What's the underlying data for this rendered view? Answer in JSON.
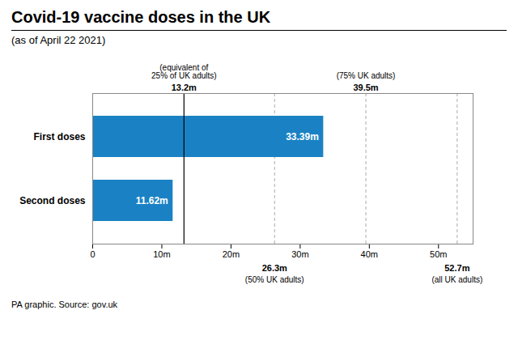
{
  "chart_data": {
    "type": "bar",
    "orientation": "horizontal",
    "title": "Covid-19 vaccine doses in the UK",
    "subtitle": "(as of April 22 2021)",
    "caption": "PA graphic. Source: gov.uk",
    "categories": [
      "First doses",
      "Second doses"
    ],
    "values": [
      33.39,
      11.62
    ],
    "value_labels": [
      "33.39m",
      "11.62m"
    ],
    "data_labels": true,
    "color": "#1a82c4",
    "xlim": [
      0,
      55
    ],
    "xticks": [
      0,
      {
        "value": 10,
        "label": "10m"
      },
      {
        "value": 20,
        "label": "20m"
      },
      {
        "value": 30,
        "label": "30m"
      },
      {
        "value": 40,
        "label": "40m"
      },
      {
        "value": 50,
        "label": "50m"
      }
    ],
    "annotations": [
      {
        "x": 13.2,
        "label": "13.2m",
        "text": "(equivalent of\n25% of UK adults)",
        "line_style": "solid",
        "color": "#000000"
      },
      {
        "x": 26.3,
        "label": "26.3m",
        "text": "(50% UK adults)",
        "line_style": "dashed",
        "color": "#aaaaaa"
      },
      {
        "x": 39.5,
        "label": "39.5m",
        "text": "(75% UK adults)",
        "line_style": "dashed",
        "color": "#aaaaaa"
      },
      {
        "x": 52.7,
        "label": "52.7m",
        "text": "(all UK adults)",
        "line_style": "dashed",
        "color": "#aaaaaa"
      }
    ]
  }
}
